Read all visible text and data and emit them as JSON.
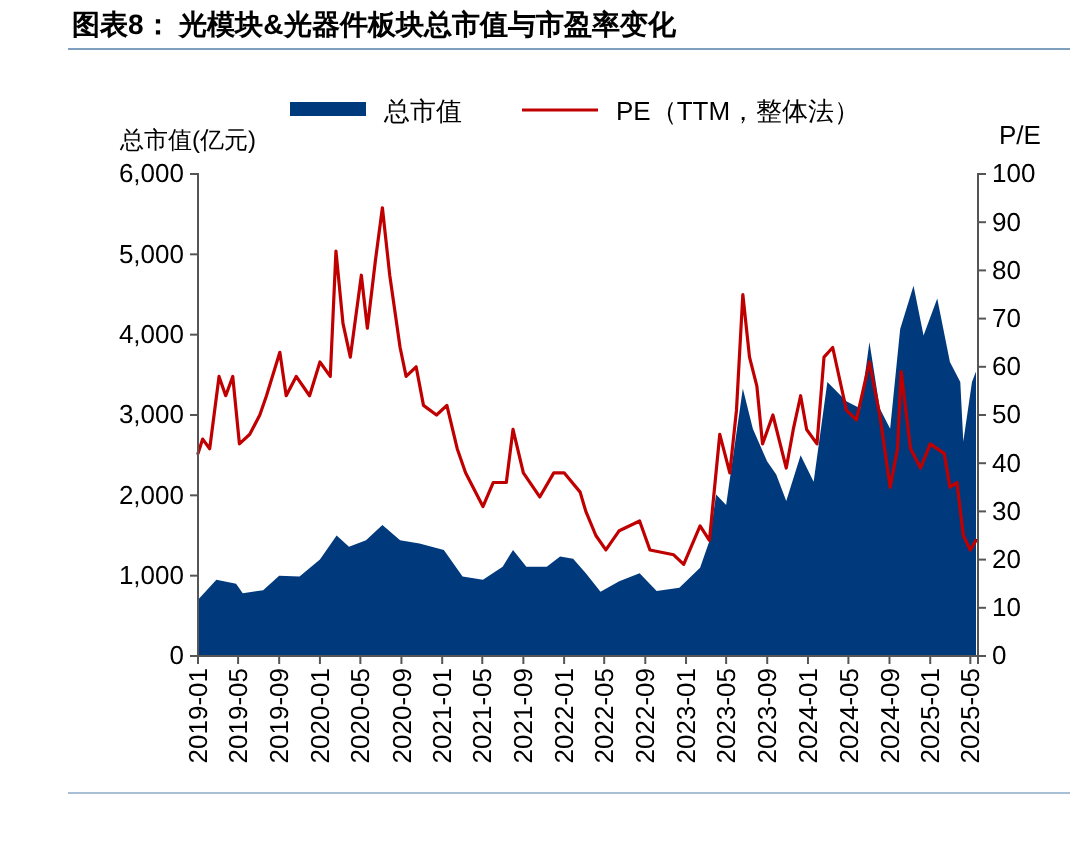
{
  "chart_data": {
    "type": "area",
    "title": "图表8： 光模块&光器件板块总市值与市盈率变化",
    "ylabel": "总市值(亿元)",
    "y2label": "P/E",
    "legend": "top",
    "grid": false,
    "xlim": [
      "2019-01-01",
      "2025-05-24"
    ],
    "xticks": [
      "2019-01",
      "2019-05",
      "2019-09",
      "2020-01",
      "2020-05",
      "2020-09",
      "2021-01",
      "2021-05",
      "2021-09",
      "2022-01",
      "2022-05",
      "2022-09",
      "2023-01",
      "2023-05",
      "2023-09",
      "2024-01",
      "2024-05",
      "2024-09",
      "2025-01",
      "2025-05"
    ],
    "ylim": [
      0,
      6000
    ],
    "yticks": [
      0,
      {
        "value": 1000,
        "label": "1,000"
      },
      {
        "value": 2000,
        "label": "2,000"
      },
      {
        "value": 3000,
        "label": "3,000"
      },
      {
        "value": 4000,
        "label": "4,000"
      },
      {
        "value": 5000,
        "label": "5,000"
      },
      {
        "value": 6000,
        "label": "6,000"
      }
    ],
    "y2lim": [
      0,
      100
    ],
    "y2ticks": [
      0,
      10,
      20,
      30,
      40,
      50,
      60,
      70,
      80,
      90,
      100
    ],
    "series": [
      {
        "name": "总市值",
        "color": "#003a7d",
        "x": [
          "2019-01-01",
          "2019-02-25",
          "2019-04-25",
          "2019-05-15",
          "2019-07-15",
          "2019-09-01",
          "2019-11-01",
          "2020-01-01",
          "2020-02-20",
          "2020-03-28",
          "2020-05-18",
          "2020-07-06",
          "2020-08-28",
          "2020-10-25",
          "2021-01-06",
          "2021-03-03",
          "2021-05-03",
          "2021-07-01",
          "2021-08-01",
          "2021-09-10",
          "2021-11-10",
          "2021-12-20",
          "2022-01-28",
          "2022-03-07",
          "2022-04-20",
          "2022-06-15",
          "2022-08-15",
          "2022-10-05",
          "2022-12-12",
          "2023-02-12",
          "2023-03-12",
          "2023-04-01",
          "2023-05-01",
          "2023-06-20",
          "2023-07-20",
          "2023-09-01",
          "2023-09-28",
          "2023-10-28",
          "2023-12-10",
          "2024-01-18",
          "2024-02-28",
          "2024-04-25",
          "2024-06-06",
          "2024-07-03",
          "2024-08-03",
          "2024-09-03",
          "2024-10-03",
          "2024-11-12",
          "2024-12-12",
          "2025-01-22",
          "2025-03-01",
          "2025-04-01",
          "2025-04-10",
          "2025-05-06",
          "2025-05-18"
        ],
        "values": [
          700,
          950,
          900,
          780,
          820,
          1000,
          990,
          1200,
          1500,
          1360,
          1440,
          1630,
          1440,
          1400,
          1320,
          990,
          950,
          1110,
          1320,
          1110,
          1110,
          1240,
          1210,
          1030,
          800,
          930,
          1030,
          810,
          850,
          1100,
          1430,
          2010,
          1880,
          3330,
          2830,
          2420,
          2260,
          1930,
          2500,
          2170,
          3410,
          3170,
          3080,
          3910,
          3080,
          2830,
          4070,
          4610,
          3990,
          4450,
          3660,
          3410,
          2670,
          3410,
          3540
        ]
      },
      {
        "name": "PE（TTM，整体法）",
        "type": "line",
        "axis": "y2",
        "color": "#c00000",
        "x": [
          "2019-01-01",
          "2019-01-15",
          "2019-02-05",
          "2019-03-05",
          "2019-03-25",
          "2019-04-15",
          "2019-05-05",
          "2019-06-05",
          "2019-07-05",
          "2019-07-25",
          "2019-09-03",
          "2019-09-22",
          "2019-10-22",
          "2019-12-01",
          "2020-01-01",
          "2020-02-01",
          "2020-02-18",
          "2020-03-10",
          "2020-04-01",
          "2020-05-04",
          "2020-05-22",
          "2020-06-15",
          "2020-07-06",
          "2020-07-28",
          "2020-08-28",
          "2020-09-15",
          "2020-10-15",
          "2020-11-06",
          "2020-12-15",
          "2021-01-15",
          "2021-02-15",
          "2021-03-12",
          "2021-05-03",
          "2021-06-03",
          "2021-07-12",
          "2021-08-01",
          "2021-09-01",
          "2021-10-20",
          "2021-12-01",
          "2022-01-01",
          "2022-02-18",
          "2022-03-07",
          "2022-04-06",
          "2022-05-06",
          "2022-06-15",
          "2022-08-15",
          "2022-09-15",
          "2022-11-25",
          "2022-12-25",
          "2023-02-12",
          "2023-03-12",
          "2023-04-12",
          "2023-05-12",
          "2023-06-01",
          "2023-06-20",
          "2023-07-10",
          "2023-08-01",
          "2023-08-18",
          "2023-09-18",
          "2023-10-28",
          "2023-11-18",
          "2023-12-10",
          "2023-12-28",
          "2024-01-28",
          "2024-02-18",
          "2024-03-15",
          "2024-04-25",
          "2024-05-25",
          "2024-07-03",
          "2024-08-03",
          "2024-09-03",
          "2024-09-25",
          "2024-10-06",
          "2024-11-03",
          "2024-12-03",
          "2025-01-01",
          "2025-02-12",
          "2025-03-01",
          "2025-03-22",
          "2025-04-10",
          "2025-05-01",
          "2025-05-18"
        ],
        "values": [
          42,
          45,
          43,
          58,
          54,
          58,
          44,
          46,
          50,
          54,
          63,
          54,
          58,
          54,
          61,
          58,
          84,
          69,
          62,
          79,
          68,
          82,
          93,
          79,
          64,
          58,
          60,
          52,
          50,
          52,
          43,
          38,
          31,
          36,
          36,
          47,
          38,
          33,
          38,
          38,
          34,
          30,
          25,
          22,
          26,
          28,
          22,
          21,
          19,
          27,
          24,
          46,
          38,
          51,
          75,
          62,
          56,
          44,
          50,
          39,
          47,
          54,
          47,
          44,
          62,
          64,
          51,
          49,
          61,
          50,
          35,
          43,
          59,
          43,
          39,
          44,
          42,
          35,
          36,
          25,
          22,
          24
        ]
      }
    ]
  }
}
